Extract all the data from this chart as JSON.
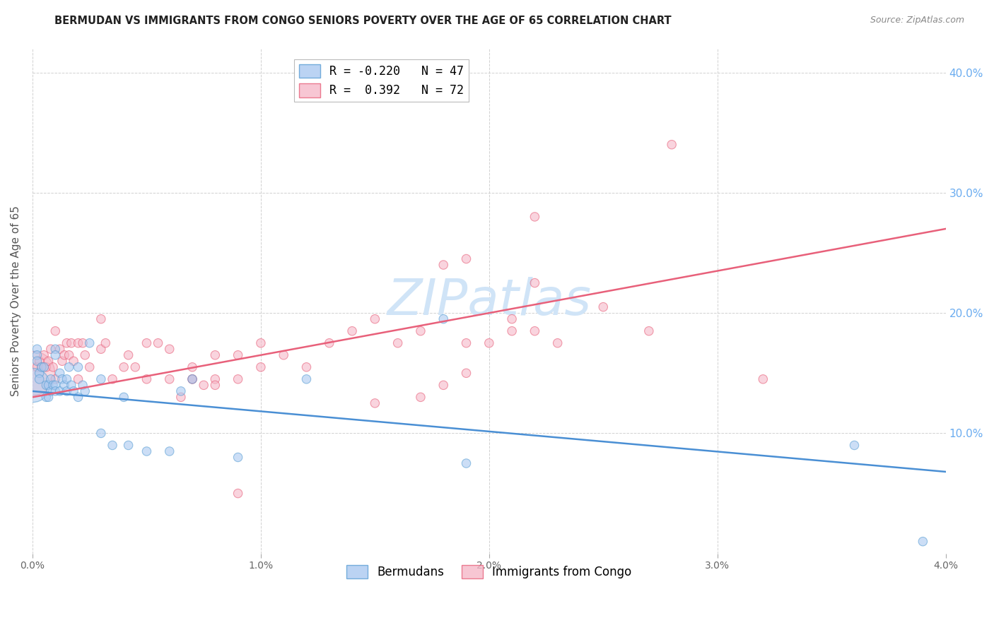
{
  "title": "BERMUDAN VS IMMIGRANTS FROM CONGO SENIORS POVERTY OVER THE AGE OF 65 CORRELATION CHART",
  "source": "Source: ZipAtlas.com",
  "ylabel": "Seniors Poverty Over the Age of 65",
  "xlim": [
    0.0,
    0.04
  ],
  "ylim": [
    0.0,
    0.42
  ],
  "xticks": [
    0.0,
    0.01,
    0.02,
    0.03,
    0.04
  ],
  "yticks": [
    0.0,
    0.1,
    0.2,
    0.3,
    0.4
  ],
  "xtick_labels": [
    "0.0%",
    "1.0%",
    "2.0%",
    "3.0%",
    "4.0%"
  ],
  "ytick_labels_right": [
    "",
    "10.0%",
    "20.0%",
    "30.0%",
    "40.0%"
  ],
  "legend_line1": "R = -0.220   N = 47",
  "legend_line2": "R =  0.392   N = 72",
  "bermudans_label": "Bermudans",
  "congo_label": "Immigrants from Congo",
  "blue_color": "#aac9f0",
  "pink_color": "#f5b8c8",
  "blue_edge_color": "#5a9fd4",
  "pink_edge_color": "#e8607a",
  "blue_line_color": "#4a8fd4",
  "pink_line_color": "#e8607a",
  "watermark_text": "ZIPatlas",
  "watermark_color": "#d0e4f7",
  "blue_scatter_x": [
    0.0002,
    0.0002,
    0.0002,
    0.0003,
    0.0003,
    0.0004,
    0.0005,
    0.0006,
    0.0006,
    0.0007,
    0.0007,
    0.0008,
    0.0008,
    0.0009,
    0.001,
    0.001,
    0.001,
    0.001,
    0.0012,
    0.0012,
    0.0013,
    0.0014,
    0.0015,
    0.0015,
    0.0016,
    0.0017,
    0.0018,
    0.002,
    0.002,
    0.0022,
    0.0023,
    0.0025,
    0.003,
    0.003,
    0.0035,
    0.004,
    0.0042,
    0.005,
    0.006,
    0.0065,
    0.007,
    0.009,
    0.012,
    0.018,
    0.019,
    0.036,
    0.039
  ],
  "blue_scatter_y": [
    0.17,
    0.165,
    0.16,
    0.15,
    0.145,
    0.155,
    0.155,
    0.14,
    0.13,
    0.14,
    0.13,
    0.145,
    0.135,
    0.14,
    0.17,
    0.165,
    0.14,
    0.135,
    0.15,
    0.135,
    0.145,
    0.14,
    0.145,
    0.135,
    0.155,
    0.14,
    0.135,
    0.155,
    0.13,
    0.14,
    0.135,
    0.175,
    0.145,
    0.1,
    0.09,
    0.13,
    0.09,
    0.085,
    0.085,
    0.135,
    0.145,
    0.08,
    0.145,
    0.195,
    0.075,
    0.09,
    0.01
  ],
  "blue_scatter_s": [
    80,
    80,
    80,
    80,
    80,
    80,
    80,
    80,
    80,
    80,
    80,
    80,
    80,
    80,
    80,
    80,
    80,
    80,
    80,
    80,
    80,
    80,
    80,
    80,
    80,
    80,
    80,
    80,
    80,
    80,
    80,
    80,
    80,
    80,
    80,
    80,
    80,
    80,
    80,
    80,
    80,
    80,
    80,
    80,
    80,
    80,
    80
  ],
  "blue_big_x": [
    0.0
  ],
  "blue_big_y": [
    0.14
  ],
  "blue_big_s": [
    1200
  ],
  "pink_scatter_x": [
    0.0002,
    0.0003,
    0.0004,
    0.0005,
    0.0006,
    0.0007,
    0.0008,
    0.0009,
    0.001,
    0.001,
    0.0012,
    0.0013,
    0.0014,
    0.0015,
    0.0016,
    0.0017,
    0.0018,
    0.002,
    0.002,
    0.0022,
    0.0023,
    0.0025,
    0.003,
    0.003,
    0.0032,
    0.0035,
    0.004,
    0.0042,
    0.0045,
    0.005,
    0.005,
    0.0055,
    0.006,
    0.006,
    0.007,
    0.007,
    0.008,
    0.008,
    0.009,
    0.009,
    0.01,
    0.01,
    0.011,
    0.012,
    0.013,
    0.014,
    0.015,
    0.016,
    0.017,
    0.018,
    0.019,
    0.02,
    0.021,
    0.022,
    0.022,
    0.023,
    0.025,
    0.027,
    0.028,
    0.032,
    0.022,
    0.018,
    0.019,
    0.021,
    0.0065,
    0.007,
    0.0075,
    0.008,
    0.009,
    0.015,
    0.017,
    0.019
  ],
  "pink_scatter_y": [
    0.155,
    0.16,
    0.155,
    0.165,
    0.155,
    0.16,
    0.17,
    0.155,
    0.185,
    0.145,
    0.17,
    0.16,
    0.165,
    0.175,
    0.165,
    0.175,
    0.16,
    0.175,
    0.145,
    0.175,
    0.165,
    0.155,
    0.195,
    0.17,
    0.175,
    0.145,
    0.155,
    0.165,
    0.155,
    0.175,
    0.145,
    0.175,
    0.17,
    0.145,
    0.155,
    0.145,
    0.165,
    0.145,
    0.165,
    0.145,
    0.175,
    0.155,
    0.165,
    0.155,
    0.175,
    0.185,
    0.195,
    0.175,
    0.185,
    0.14,
    0.175,
    0.175,
    0.185,
    0.185,
    0.225,
    0.175,
    0.205,
    0.185,
    0.34,
    0.145,
    0.28,
    0.24,
    0.245,
    0.195,
    0.13,
    0.145,
    0.14,
    0.14,
    0.05,
    0.125,
    0.13,
    0.15
  ],
  "pink_scatter_s": [
    80,
    80,
    80,
    80,
    80,
    80,
    80,
    80,
    80,
    80,
    80,
    80,
    80,
    80,
    80,
    80,
    80,
    80,
    80,
    80,
    80,
    80,
    80,
    80,
    80,
    80,
    80,
    80,
    80,
    80,
    80,
    80,
    80,
    80,
    80,
    80,
    80,
    80,
    80,
    80,
    80,
    80,
    80,
    80,
    80,
    80,
    80,
    80,
    80,
    80,
    80,
    80,
    80,
    80,
    80,
    80,
    80,
    80,
    80,
    80,
    80,
    80,
    80,
    80,
    80,
    80,
    80,
    80,
    80,
    80,
    80,
    80
  ],
  "pink_big_x": [
    0.0
  ],
  "pink_big_y": [
    0.15
  ],
  "pink_big_s": [
    2000
  ],
  "blue_line_x": [
    0.0,
    0.04
  ],
  "blue_line_y": [
    0.135,
    0.068
  ],
  "pink_line_x": [
    0.0,
    0.04
  ],
  "pink_line_y": [
    0.13,
    0.27
  ],
  "grid_color": "#cccccc",
  "bg_color": "#ffffff",
  "title_fontsize": 10.5,
  "ylabel_fontsize": 11,
  "tick_fontsize": 10,
  "right_tick_color": "#6aacf0",
  "watermark_fontsize": 52
}
